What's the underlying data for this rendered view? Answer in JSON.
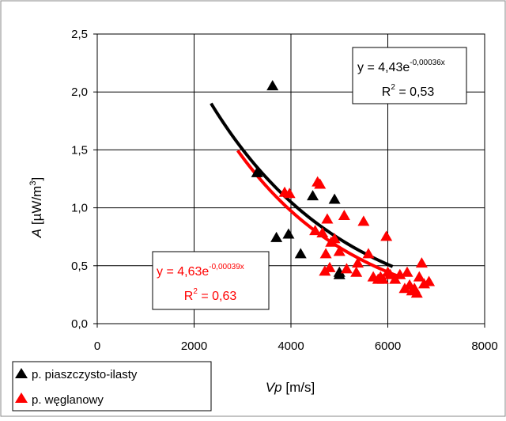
{
  "chart_data": {
    "type": "scatter",
    "xlabel": {
      "var": "Vp",
      "unit": "[m/s]"
    },
    "ylabel": {
      "var": "A",
      "unit": "[µW/m",
      "unit_sup": "3",
      "unit_end": "]"
    },
    "xlim": [
      0,
      8000
    ],
    "ylim": [
      0,
      2.5
    ],
    "x_ticks": [
      "0",
      "2000",
      "4000",
      "6000",
      "8000"
    ],
    "y_ticks": [
      "0,0",
      "0,5",
      "1,0",
      "1,5",
      "2,0",
      "2,5"
    ],
    "grid": true,
    "legend_position": "bottom-left",
    "series": [
      {
        "name": "p. piaszczysto-ilasty",
        "color": "#000000",
        "marker": "triangle",
        "points": [
          [
            3300,
            1.3
          ],
          [
            3620,
            2.05
          ],
          [
            3700,
            0.74
          ],
          [
            3950,
            0.77
          ],
          [
            4200,
            0.6
          ],
          [
            4450,
            1.1
          ],
          [
            4900,
            1.07
          ],
          [
            5000,
            0.44
          ],
          [
            5000,
            0.42
          ]
        ],
        "trend": {
          "a": 4.43,
          "b": -0.00036,
          "x_range": [
            2350,
            6100
          ],
          "equation": "y = 4,43e",
          "exponent": "-0,00036x",
          "r2_label": "R",
          "r2_sup": "2",
          "r2_value": " = 0,53"
        }
      },
      {
        "name": "p. węglanowy",
        "color": "#ff0000",
        "marker": "triangle",
        "points": [
          [
            3870,
            1.13
          ],
          [
            3970,
            1.12
          ],
          [
            4500,
            0.8
          ],
          [
            4550,
            1.22
          ],
          [
            4600,
            1.2
          ],
          [
            4650,
            0.78
          ],
          [
            4700,
            0.45
          ],
          [
            4720,
            0.6
          ],
          [
            4750,
            0.9
          ],
          [
            4800,
            0.48
          ],
          [
            4830,
            0.7
          ],
          [
            4900,
            0.73
          ],
          [
            5000,
            0.62
          ],
          [
            5100,
            0.93
          ],
          [
            5150,
            0.47
          ],
          [
            5350,
            0.44
          ],
          [
            5380,
            0.52
          ],
          [
            5500,
            0.88
          ],
          [
            5600,
            0.6
          ],
          [
            5700,
            0.4
          ],
          [
            5800,
            0.38
          ],
          [
            5850,
            0.4
          ],
          [
            5900,
            0.38
          ],
          [
            5970,
            0.75
          ],
          [
            6000,
            0.44
          ],
          [
            6050,
            0.42
          ],
          [
            6150,
            0.38
          ],
          [
            6250,
            0.42
          ],
          [
            6350,
            0.3
          ],
          [
            6400,
            0.44
          ],
          [
            6450,
            0.33
          ],
          [
            6500,
            0.28
          ],
          [
            6550,
            0.3
          ],
          [
            6600,
            0.26
          ],
          [
            6650,
            0.4
          ],
          [
            6700,
            0.52
          ],
          [
            6750,
            0.34
          ],
          [
            6850,
            0.36
          ]
        ],
        "trend": {
          "a": 4.63,
          "b": -0.00039,
          "x_range": [
            2900,
            6300
          ],
          "equation": "y = 4,63e",
          "exponent": "-0,00039x",
          "r2_label": "R",
          "r2_sup": "2",
          "r2_value": " = 0,63"
        }
      }
    ]
  }
}
